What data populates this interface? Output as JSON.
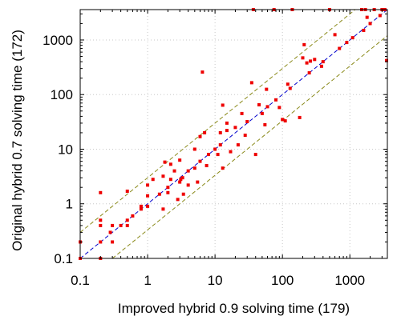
{
  "chart_data": {
    "type": "scatter",
    "title": "",
    "xlabel": "Improved hybrid 0.9 solving time (179)",
    "ylabel": "Original hybrid 0.7 solving time (172)",
    "xscale": "log",
    "yscale": "log",
    "xlim": [
      0.1,
      3600
    ],
    "ylim": [
      0.1,
      3600
    ],
    "grid": true,
    "legend": "none",
    "x_ticks": [
      {
        "value": 0.1,
        "label": "0.1"
      },
      {
        "value": 1,
        "label": "1"
      },
      {
        "value": 10,
        "label": "10"
      },
      {
        "value": 100,
        "label": "100"
      },
      {
        "value": 1000,
        "label": "1000"
      }
    ],
    "y_ticks": [
      {
        "value": 0.1,
        "label": "0.1"
      },
      {
        "value": 1,
        "label": "1"
      },
      {
        "value": 10,
        "label": "10"
      },
      {
        "value": 100,
        "label": "100"
      },
      {
        "value": 1000,
        "label": "1000"
      }
    ],
    "reference_lines": [
      {
        "style": "dashed",
        "color": "#0000cc",
        "factor": 1
      },
      {
        "style": "dashed",
        "color": "#8a8a1a",
        "factor": 3
      },
      {
        "style": "dashed",
        "color": "#8a8a1a",
        "factor": 0.333
      }
    ],
    "point_color": "#ee0000",
    "points": [
      [
        0.1,
        0.1
      ],
      [
        0.1,
        0.2
      ],
      [
        0.2,
        0.1
      ],
      [
        0.2,
        0.2
      ],
      [
        0.2,
        0.4
      ],
      [
        0.2,
        0.5
      ],
      [
        0.2,
        1.6
      ],
      [
        0.28,
        0.3
      ],
      [
        0.3,
        0.2
      ],
      [
        0.3,
        0.4
      ],
      [
        0.4,
        0.4
      ],
      [
        0.5,
        0.4
      ],
      [
        0.5,
        0.5
      ],
      [
        0.6,
        0.6
      ],
      [
        0.5,
        1.7
      ],
      [
        0.8,
        0.8
      ],
      [
        0.8,
        0.9
      ],
      [
        1.0,
        0.9
      ],
      [
        1.0,
        2.2
      ],
      [
        1.0,
        1.4
      ],
      [
        1.2,
        2.8
      ],
      [
        1.5,
        1.5
      ],
      [
        1.7,
        0.8
      ],
      [
        1.7,
        3.2
      ],
      [
        1.8,
        5.8
      ],
      [
        2.0,
        1.6
      ],
      [
        2.0,
        2.0
      ],
      [
        2.2,
        5.3
      ],
      [
        2.2,
        2.8
      ],
      [
        2.5,
        4.0
      ],
      [
        2.8,
        1.2
      ],
      [
        3.0,
        2.5
      ],
      [
        3.1,
        2.8
      ],
      [
        3.0,
        6.3
      ],
      [
        3.3,
        3.0
      ],
      [
        3.4,
        1.5
      ],
      [
        4.0,
        2.2
      ],
      [
        4.0,
        4.0
      ],
      [
        5.0,
        10.0
      ],
      [
        5.0,
        4.5
      ],
      [
        5.5,
        2.5
      ],
      [
        6.0,
        17.0
      ],
      [
        6.0,
        6.0
      ],
      [
        6.5,
        258
      ],
      [
        7.0,
        20.0
      ],
      [
        7.5,
        5.0
      ],
      [
        8.0,
        8.0
      ],
      [
        10.0,
        10.0
      ],
      [
        11.0,
        8.0
      ],
      [
        12.0,
        20.0
      ],
      [
        12.0,
        12.0
      ],
      [
        13.0,
        4.5
      ],
      [
        13.0,
        64.0
      ],
      [
        15.0,
        30.0
      ],
      [
        15.0,
        22.0
      ],
      [
        17.0,
        9.0
      ],
      [
        20.0,
        25.0
      ],
      [
        22.0,
        12.0
      ],
      [
        25.0,
        45.0
      ],
      [
        28.0,
        18.0
      ],
      [
        30.0,
        32.0
      ],
      [
        35.0,
        165
      ],
      [
        37.0,
        3600
      ],
      [
        40.0,
        8.0
      ],
      [
        45.0,
        65.0
      ],
      [
        50.0,
        45.0
      ],
      [
        55.0,
        28.0
      ],
      [
        58.0,
        125
      ],
      [
        60.0,
        60.0
      ],
      [
        75.0,
        3600
      ],
      [
        80.0,
        80.0
      ],
      [
        90.0,
        58.0
      ],
      [
        100.0,
        35.0
      ],
      [
        110.0,
        33.0
      ],
      [
        120.0,
        155
      ],
      [
        130.0,
        130
      ],
      [
        140.0,
        3600
      ],
      [
        180.0,
        38.0
      ],
      [
        200.0,
        470
      ],
      [
        210.0,
        820
      ],
      [
        230.0,
        380
      ],
      [
        250.0,
        250
      ],
      [
        260.0,
        410
      ],
      [
        300.0,
        440
      ],
      [
        380.0,
        330
      ],
      [
        400.0,
        400
      ],
      [
        500.0,
        3600
      ],
      [
        600.0,
        1250
      ],
      [
        700.0,
        700
      ],
      [
        900.0,
        900
      ],
      [
        1100.0,
        1100
      ],
      [
        1500.0,
        3600
      ],
      [
        1600.0,
        1500
      ],
      [
        1700.0,
        3600
      ],
      [
        1800.0,
        2600
      ],
      [
        2000.0,
        2000
      ],
      [
        2300.0,
        3600
      ],
      [
        2800.0,
        2800
      ],
      [
        3000.0,
        3600
      ],
      [
        3300.0,
        3600
      ],
      [
        3500.0,
        420
      ]
    ]
  }
}
